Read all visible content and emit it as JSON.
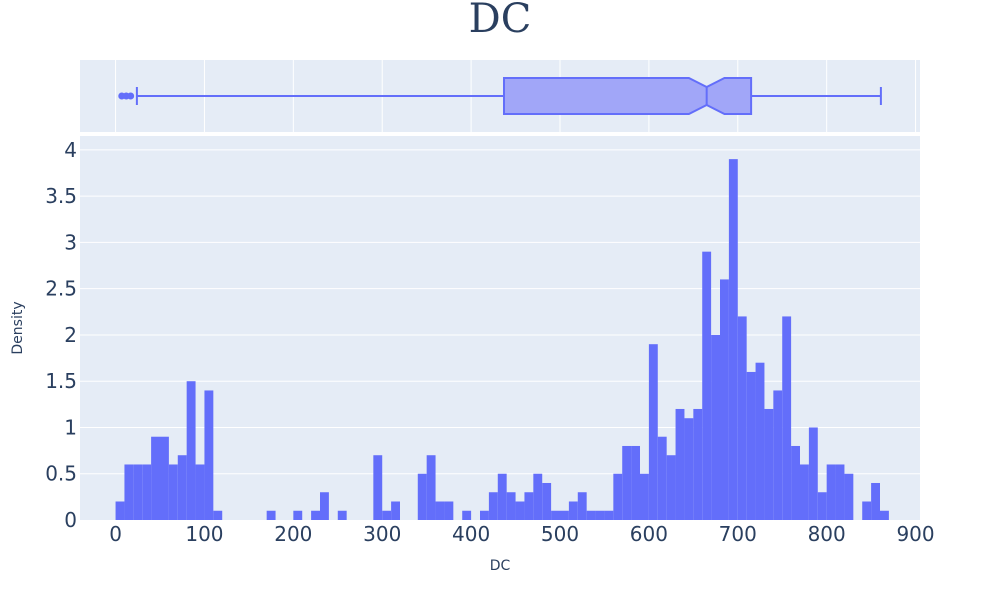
{
  "chart_data": {
    "type": "histogram",
    "title": "DC",
    "xlabel": "DC",
    "ylabel": "Density",
    "colors": {
      "bar": "#636efa",
      "box_fill": "#a1a6f8",
      "box_line": "#636efa",
      "plot_bg": "#e5ecf6",
      "grid": "#ffffff",
      "text": "#2a3f5f"
    },
    "x_range": [
      -40,
      905
    ],
    "y_range": [
      0,
      4.15
    ],
    "x_ticks": [
      0,
      100,
      200,
      300,
      400,
      500,
      600,
      700,
      800,
      900
    ],
    "y_ticks": [
      0,
      0.5,
      1,
      1.5,
      2,
      2.5,
      3,
      3.5,
      4
    ],
    "y_tick_labels": [
      "0",
      "0.5",
      "1",
      "1.5",
      "2",
      "2.5",
      "3",
      "3.5",
      "4"
    ],
    "bin_width": 10,
    "bins": [
      {
        "x0": 0,
        "value": 0.2
      },
      {
        "x0": 10,
        "value": 0.6
      },
      {
        "x0": 20,
        "value": 0.6
      },
      {
        "x0": 30,
        "value": 0.6
      },
      {
        "x0": 40,
        "value": 0.9
      },
      {
        "x0": 50,
        "value": 0.9
      },
      {
        "x0": 60,
        "value": 0.6
      },
      {
        "x0": 70,
        "value": 0.7
      },
      {
        "x0": 80,
        "value": 1.5
      },
      {
        "x0": 90,
        "value": 0.6
      },
      {
        "x0": 100,
        "value": 1.4
      },
      {
        "x0": 110,
        "value": 0.1
      },
      {
        "x0": 170,
        "value": 0.1
      },
      {
        "x0": 200,
        "value": 0.1
      },
      {
        "x0": 220,
        "value": 0.1
      },
      {
        "x0": 230,
        "value": 0.3
      },
      {
        "x0": 250,
        "value": 0.1
      },
      {
        "x0": 290,
        "value": 0.7
      },
      {
        "x0": 300,
        "value": 0.1
      },
      {
        "x0": 310,
        "value": 0.2
      },
      {
        "x0": 340,
        "value": 0.5
      },
      {
        "x0": 350,
        "value": 0.7
      },
      {
        "x0": 360,
        "value": 0.2
      },
      {
        "x0": 370,
        "value": 0.2
      },
      {
        "x0": 390,
        "value": 0.1
      },
      {
        "x0": 410,
        "value": 0.1
      },
      {
        "x0": 420,
        "value": 0.3
      },
      {
        "x0": 430,
        "value": 0.5
      },
      {
        "x0": 440,
        "value": 0.3
      },
      {
        "x0": 450,
        "value": 0.2
      },
      {
        "x0": 460,
        "value": 0.3
      },
      {
        "x0": 470,
        "value": 0.5
      },
      {
        "x0": 480,
        "value": 0.4
      },
      {
        "x0": 490,
        "value": 0.1
      },
      {
        "x0": 500,
        "value": 0.1
      },
      {
        "x0": 510,
        "value": 0.2
      },
      {
        "x0": 520,
        "value": 0.3
      },
      {
        "x0": 530,
        "value": 0.1
      },
      {
        "x0": 540,
        "value": 0.1
      },
      {
        "x0": 550,
        "value": 0.1
      },
      {
        "x0": 560,
        "value": 0.5
      },
      {
        "x0": 570,
        "value": 0.8
      },
      {
        "x0": 580,
        "value": 0.8
      },
      {
        "x0": 590,
        "value": 0.5
      },
      {
        "x0": 600,
        "value": 1.9
      },
      {
        "x0": 610,
        "value": 0.9
      },
      {
        "x0": 620,
        "value": 0.7
      },
      {
        "x0": 630,
        "value": 1.2
      },
      {
        "x0": 640,
        "value": 1.1
      },
      {
        "x0": 650,
        "value": 1.2
      },
      {
        "x0": 660,
        "value": 2.9
      },
      {
        "x0": 670,
        "value": 2.0
      },
      {
        "x0": 680,
        "value": 2.6
      },
      {
        "x0": 690,
        "value": 3.9
      },
      {
        "x0": 700,
        "value": 2.2
      },
      {
        "x0": 710,
        "value": 1.6
      },
      {
        "x0": 720,
        "value": 1.7
      },
      {
        "x0": 730,
        "value": 1.2
      },
      {
        "x0": 740,
        "value": 1.4
      },
      {
        "x0": 750,
        "value": 2.2
      },
      {
        "x0": 760,
        "value": 0.8
      },
      {
        "x0": 770,
        "value": 0.6
      },
      {
        "x0": 780,
        "value": 1.0
      },
      {
        "x0": 790,
        "value": 0.3
      },
      {
        "x0": 800,
        "value": 0.6
      },
      {
        "x0": 810,
        "value": 0.6
      },
      {
        "x0": 820,
        "value": 0.5
      },
      {
        "x0": 840,
        "value": 0.2
      },
      {
        "x0": 850,
        "value": 0.4
      },
      {
        "x0": 860,
        "value": 0.1
      }
    ],
    "boxplot": {
      "orientation": "horizontal",
      "notched": true,
      "lower_fence": 24,
      "q1": 437,
      "notch_low": 645,
      "median": 665,
      "notch_high": 685,
      "q3": 715,
      "upper_fence": 861,
      "outliers": [
        7,
        12,
        17
      ]
    }
  }
}
